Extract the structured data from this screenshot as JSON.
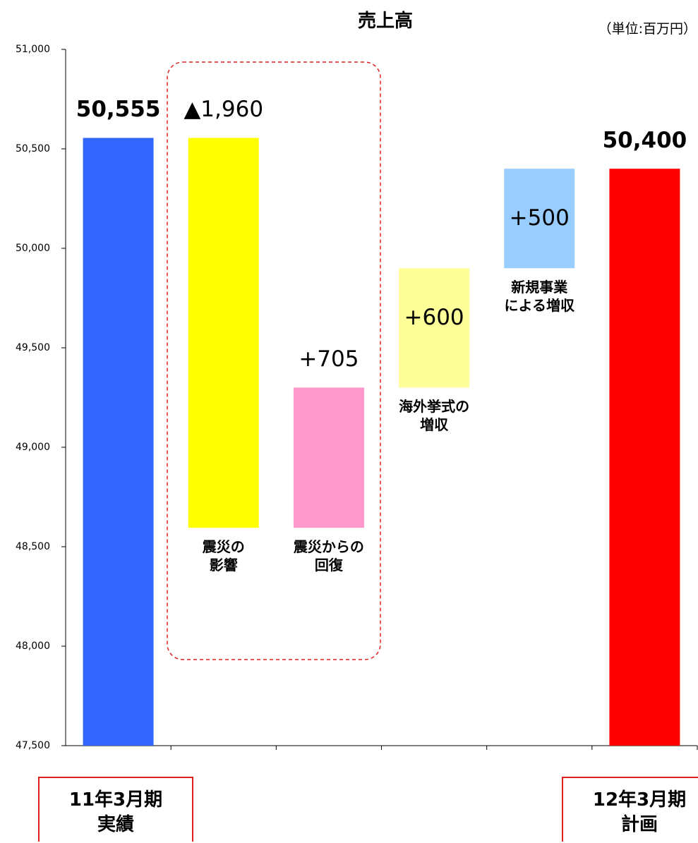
{
  "chart_data": {
    "type": "waterfall",
    "title": "売上高",
    "subtitle": "（単位:百万円）",
    "categories": [
      "11年3月期\n実績",
      "震災の\n影響",
      "震災からの\n回復",
      "海外挙式の\n増収",
      "新規事業\nによる増収",
      "12年3月期\n計画"
    ],
    "measures": [
      "absolute",
      "relative",
      "relative",
      "relative",
      "relative",
      "absolute"
    ],
    "values": [
      50555,
      -1960,
      705,
      600,
      500,
      50400
    ],
    "value_labels": [
      "50,555",
      "▲1,960",
      "+705",
      "+600",
      "+500",
      "50,400"
    ],
    "colors": [
      "#3366ff",
      "#ffff00",
      "#ff99cc",
      "#ffff99",
      "#99ccff",
      "#ff0000"
    ],
    "ylim": [
      47500,
      51000
    ],
    "yticks": [
      {
        "value": 47500,
        "label": "47,500"
      },
      {
        "value": 48000,
        "label": "48,000"
      },
      {
        "value": 48500,
        "label": "48,500"
      },
      {
        "value": 49000,
        "label": "49,000"
      },
      {
        "value": 49500,
        "label": "49,500"
      },
      {
        "value": 50000,
        "label": "50,000"
      },
      {
        "value": 50500,
        "label": "50,500"
      },
      {
        "value": 51000,
        "label": "51,000"
      }
    ],
    "grid": false
  }
}
